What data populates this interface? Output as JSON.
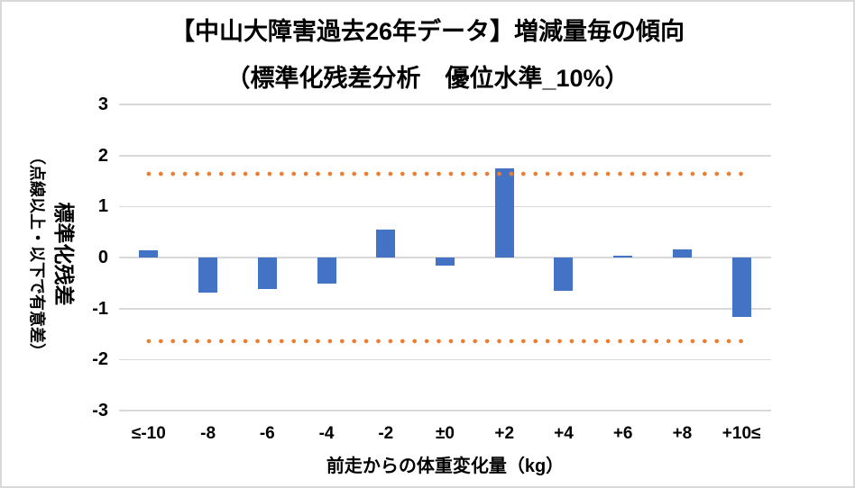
{
  "page": {
    "background": "#ffffff",
    "frame_border_color": "#D9D9D9"
  },
  "chart_data": {
    "type": "bar",
    "title": "【中山大障害過去26年データ】増減量毎の傾向",
    "subtitle": "（標準化残差分析　優位水準_10%）",
    "categories": [
      "≤-10",
      "-8",
      "-6",
      "-4",
      "-2",
      "±0",
      "+2",
      "+4",
      "+6",
      "+8",
      "+10≤"
    ],
    "values": [
      0.14,
      -0.68,
      -0.61,
      -0.51,
      0.54,
      -0.16,
      1.75,
      -0.66,
      0.04,
      0.16,
      -1.16
    ],
    "xlabel": "前走からの体重変化量（kg）",
    "ylabel": "標準化残差",
    "ylabel_note": "（点線以上・以下で有意差）",
    "ylim": [
      -3,
      3
    ],
    "yticks": [
      3,
      2,
      1,
      0,
      -1,
      -2,
      -3
    ],
    "thresholds": {
      "upper": 1.64,
      "lower": -1.64
    },
    "grid": true,
    "legend": "none",
    "colors": {
      "bar": "#4472C4",
      "threshold_dotted": "#ED7D31",
      "gridline": "#D9D9D9",
      "zero_axis": "#D9D9D9",
      "text": "#000000"
    }
  }
}
